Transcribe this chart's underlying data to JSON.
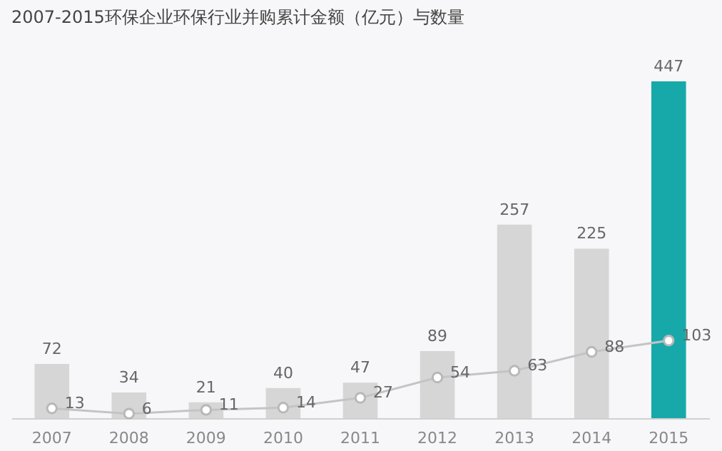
{
  "chart_data": {
    "type": "bar",
    "title": "2007-2015环保企业环保行业并购累计金额（亿元）与数量",
    "categories": [
      "2007",
      "2008",
      "2009",
      "2010",
      "2011",
      "2012",
      "2013",
      "2014",
      "2015"
    ],
    "series": [
      {
        "colors": [
          "#d6d6d6",
          "#d6d6d6",
          "#d6d6d6",
          "#d6d6d6",
          "#d6d6d6",
          "#d6d6d6",
          "#d6d6d6",
          "#d6d6d6",
          "#17a9a9"
        ],
        "values": [
          72,
          34,
          21,
          40,
          47,
          89,
          257,
          225,
          447
        ]
      },
      {
        "type": "line",
        "color": "#c4c4c4",
        "marker": "circle",
        "values": [
          13,
          6,
          11,
          14,
          27,
          54,
          63,
          88,
          103
        ]
      }
    ],
    "ylim": [
      0,
      447
    ],
    "tick_labels": "x",
    "data_labels": true,
    "legend": false,
    "grid": false
  }
}
